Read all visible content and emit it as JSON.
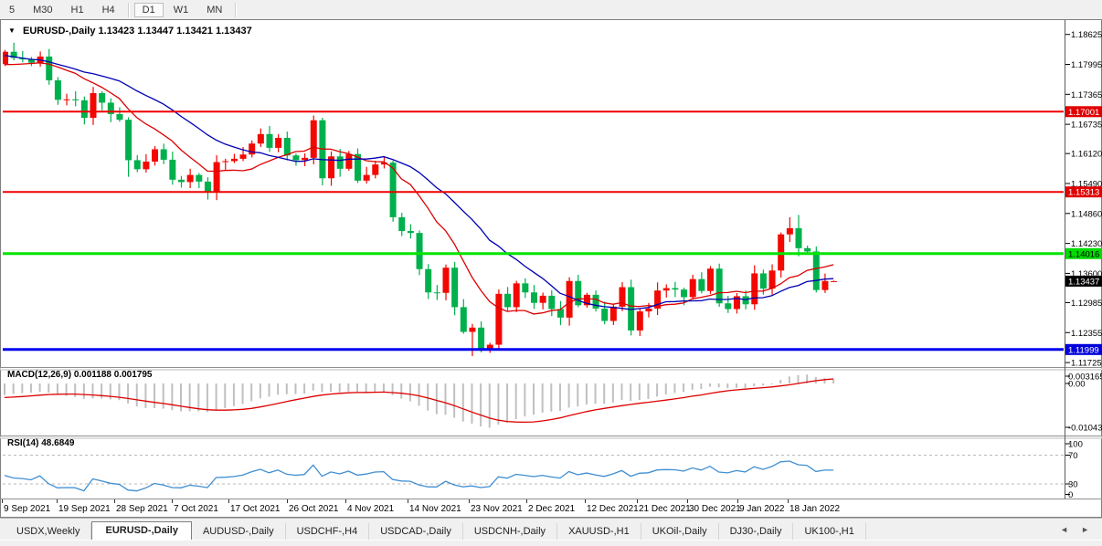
{
  "icons": {
    "dropdown_arrow": "▼",
    "tabs_scroll_left": "◄",
    "tabs_scroll_right": "►"
  },
  "toolbar": {
    "buttons": [
      "5",
      "M30",
      "H1",
      "H4",
      "D1",
      "W1",
      "MN"
    ],
    "active": "D1"
  },
  "chart_title": {
    "symbol": "EURUSD-,Daily",
    "ohlc": "1.13423 1.13447 1.13421 1.13437"
  },
  "price_axis": {
    "labels": [
      "1.18625",
      "1.17995",
      "1.17365",
      "1.16735",
      "1.16120",
      "1.15490",
      "1.14860",
      "1.14230",
      "1.13600",
      "1.12985",
      "1.12355",
      "1.11725"
    ],
    "badges": [
      {
        "text": "1.17001",
        "price": 1.17001,
        "bg": "#e00000",
        "fg": "#ffffff"
      },
      {
        "text": "1.15313",
        "price": 1.15313,
        "bg": "#e00000",
        "fg": "#ffffff"
      },
      {
        "text": "1.14016",
        "price": 1.14016,
        "bg": "#00dc00",
        "fg": "#000000"
      },
      {
        "text": "1.13437",
        "price": 1.13437,
        "bg": "#000000",
        "fg": "#ffffff"
      },
      {
        "text": "1.11999",
        "price": 1.11999,
        "bg": "#0000dc",
        "fg": "#ffffff"
      }
    ]
  },
  "macd": {
    "label": "MACD(12,26,9)",
    "values": "0.001188 0.001795",
    "fast": 12,
    "slow": 26,
    "signal": 9,
    "axis": [
      "0.003165",
      "0.00",
      "-0.01043"
    ]
  },
  "rsi": {
    "label": "RSI(14)",
    "value": "48.6849",
    "period": 14,
    "axis": [
      "100",
      "70",
      "30",
      "0"
    ],
    "levels": [
      70,
      30
    ]
  },
  "tabs": {
    "items": [
      "USDX,Weekly",
      "EURUSD-,Daily",
      "AUDUSD-,Daily",
      "USDCHF-,H4",
      "USDCAD-,Daily",
      "USDCNH-,Daily",
      "XAUUSD-,H1",
      "UKOil-,Daily",
      "DJ30-,Daily",
      "UK100-,H1"
    ],
    "active": "EURUSD-,Daily"
  },
  "chart_data": {
    "type": "candlestick",
    "symbol": "EURUSD",
    "timeframe": "Daily",
    "price_range": {
      "top": 1.18625,
      "bottom": 1.11725,
      "grid_step": 0.0063
    },
    "last_ohlc": {
      "open": 1.13423,
      "high": 1.13447,
      "low": 1.13421,
      "close": 1.13437
    },
    "dates": [
      "9 Sep 2021",
      "19 Sep 2021",
      "28 Sep 2021",
      "7 Oct 2021",
      "17 Oct 2021",
      "26 Oct 2021",
      "4 Nov 2021",
      "14 Nov 2021",
      "23 Nov 2021",
      "2 Dec 2021",
      "12 Dec 2021",
      "21 Dec 2021",
      "30 Dec 2021",
      "9 Jan 2022",
      "18 Jan 2022"
    ],
    "date_x": [
      2,
      62,
      125,
      188,
      250,
      314,
      378,
      446,
      513,
      576,
      640,
      697,
      752,
      807,
      862
    ],
    "pre_closes": [
      1.196,
      1.1948,
      1.1938,
      1.1928,
      1.1915,
      1.1905,
      1.1912,
      1.1898,
      1.1885,
      1.189,
      1.1875,
      1.1862,
      1.1868,
      1.1855,
      1.184,
      1.1845,
      1.183,
      1.1822,
      1.1828,
      1.1815,
      1.1805,
      1.1812,
      1.18,
      1.1792,
      1.1802,
      1.1792,
      1.1785,
      1.1795,
      1.1788,
      1.18
    ],
    "closes": [
      1.1826,
      1.1813,
      1.181,
      1.1803,
      1.1816,
      1.1766,
      1.1725,
      1.1726,
      1.1724,
      1.1687,
      1.1739,
      1.1719,
      1.1695,
      1.1683,
      1.1598,
      1.1579,
      1.1595,
      1.1621,
      1.1599,
      1.1557,
      1.1552,
      1.1567,
      1.1553,
      1.153,
      1.1594,
      1.1596,
      1.1601,
      1.161,
      1.1633,
      1.1653,
      1.1624,
      1.1645,
      1.1608,
      1.1598,
      1.1603,
      1.1682,
      1.156,
      1.1606,
      1.158,
      1.1611,
      1.1555,
      1.1567,
      1.1589,
      1.1593,
      1.1478,
      1.1449,
      1.1445,
      1.1369,
      1.132,
      1.1319,
      1.1372,
      1.1289,
      1.1237,
      1.1246,
      1.12,
      1.121,
      1.1317,
      1.1289,
      1.1339,
      1.132,
      1.1298,
      1.1313,
      1.1285,
      1.1267,
      1.1344,
      1.1293,
      1.1315,
      1.1286,
      1.126,
      1.129,
      1.1331,
      1.124,
      1.128,
      1.1286,
      1.1324,
      1.1329,
      1.1326,
      1.131,
      1.1348,
      1.1323,
      1.137,
      1.1297,
      1.1285,
      1.1312,
      1.1295,
      1.136,
      1.1328,
      1.1366,
      1.1442,
      1.1455,
      1.1413,
      1.1406,
      1.1325,
      1.1344,
      1.13437
    ],
    "high_overrides": {
      "1": 1.1845,
      "35": 1.1692,
      "89": 1.1478,
      "90": 1.1483
    },
    "low_overrides": {
      "14": 1.1563,
      "53": 1.1186
    },
    "hlines": [
      {
        "price": 1.17001,
        "color": "#f00000",
        "width": 2
      },
      {
        "price": 1.15313,
        "color": "#f00000",
        "width": 2
      },
      {
        "price": 1.14016,
        "color": "#00e400",
        "width": 3
      },
      {
        "price": 1.11999,
        "color": "#0000f0",
        "width": 3
      }
    ],
    "ma": [
      {
        "period": 10,
        "color": "#dd0000"
      },
      {
        "period": 20,
        "color": "#0000b4"
      }
    ],
    "colors": {
      "up_candle": "#f20800",
      "down_candle": "#00b04c",
      "macd_hist": "#c0c0c0",
      "macd_signal": "#dd0000",
      "rsi_line": "#3f8fd2",
      "axis_text": "#000000"
    }
  }
}
